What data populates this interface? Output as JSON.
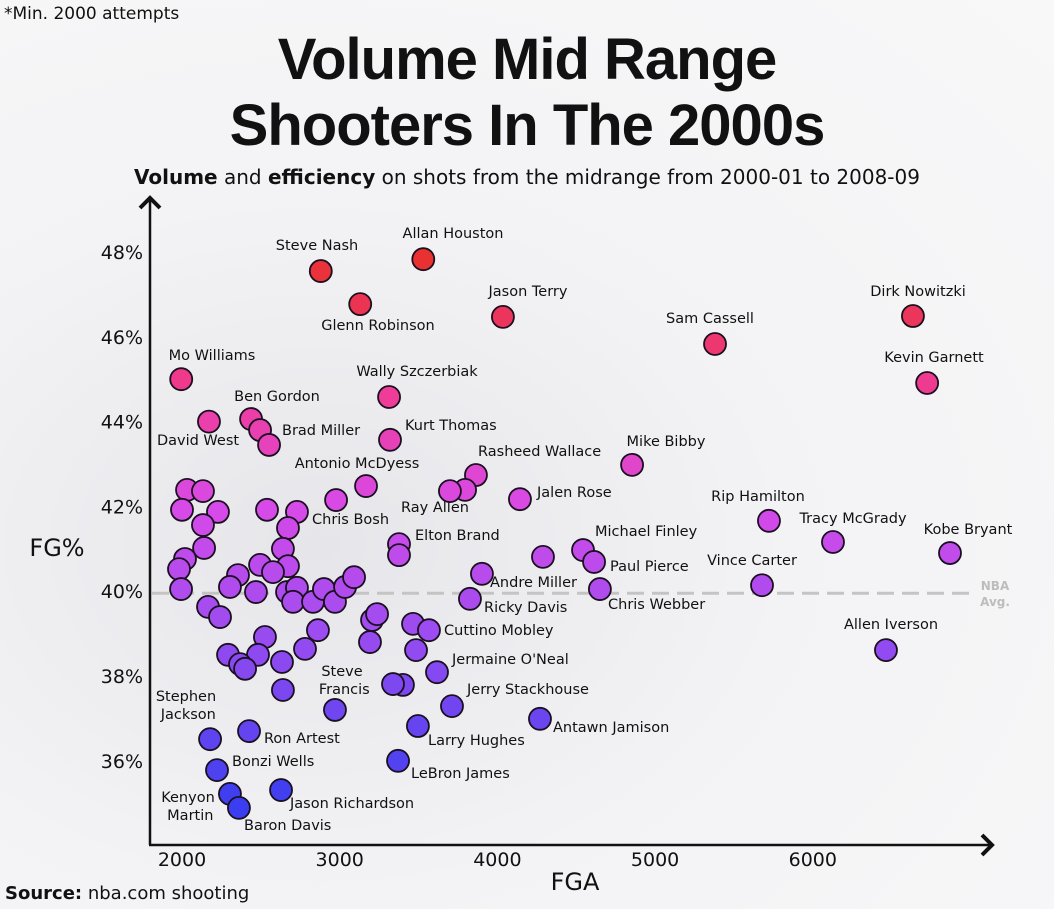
{
  "note": "*Min. 2000 attempts",
  "title_line1": "Volume Mid Range",
  "title_line2": "Shooters In The 2000s",
  "subtitle": {
    "bold1": "Volume",
    "text1": " and ",
    "bold2": "efficiency",
    "text2": " on shots from the midrange from 2000-01 to 2008-09"
  },
  "source": {
    "label": "Source:",
    "text": " nba.com shooting"
  },
  "chart_data": {
    "type": "scatter",
    "xlabel": "FGA",
    "ylabel": "FG%",
    "xlim": [
      1800,
      7000
    ],
    "ylim": [
      34.5,
      49
    ],
    "x_ticks": [
      {
        "v": 2000,
        "label": "2000"
      },
      {
        "v": 3000,
        "label": "3000"
      },
      {
        "v": 4000,
        "label": "4000"
      },
      {
        "v": 5000,
        "label": "5000"
      },
      {
        "v": 6000,
        "label": "6000"
      }
    ],
    "y_ticks": [
      {
        "v": 48,
        "label": "48%"
      },
      {
        "v": 46,
        "label": "46%"
      },
      {
        "v": 44,
        "label": "44%"
      },
      {
        "v": 42,
        "label": "42%"
      },
      {
        "v": 40,
        "label": "40%"
      },
      {
        "v": 38,
        "label": "38%"
      },
      {
        "v": 36,
        "label": "36%"
      }
    ],
    "grid": false,
    "reference_line": {
      "y": 40,
      "label_line1": "NBA",
      "label_line2": "Avg.",
      "color": "#c4c4c4"
    },
    "color_scale": {
      "high": "#e8302a",
      "mid_high": "#f03c9c",
      "mid": "#d84ae8",
      "mid_low": "#9a4cf0",
      "low": "#3a3ef0"
    },
    "points": [
      {
        "x": 2880,
        "y": 47.55,
        "label": "Steve Nash"
      },
      {
        "x": 3530,
        "y": 47.83,
        "label": "Allan Houston"
      },
      {
        "x": 3130,
        "y": 46.77,
        "label": "Glenn Robinson"
      },
      {
        "x": 4035,
        "y": 46.47,
        "label": "Jason Terry"
      },
      {
        "x": 5380,
        "y": 45.83,
        "label": "Sam Cassell"
      },
      {
        "x": 6635,
        "y": 46.49,
        "label": "Dirk Nowitzki"
      },
      {
        "x": 6725,
        "y": 44.91,
        "label": "Kevin Garnett"
      },
      {
        "x": 1995,
        "y": 45.0,
        "label": "Mo Williams"
      },
      {
        "x": 3313,
        "y": 44.58,
        "label": "Wally Szczerbiak"
      },
      {
        "x": 2438,
        "y": 44.06,
        "label": "Ben Gordon"
      },
      {
        "x": 2171,
        "y": 44.0,
        "label": "David West"
      },
      {
        "x": 2495,
        "y": 43.8,
        "label": ""
      },
      {
        "x": 2552,
        "y": 43.45,
        "label": "Brad Miller"
      },
      {
        "x": 3319,
        "y": 43.57,
        "label": "Kurt Thomas"
      },
      {
        "x": 4854,
        "y": 42.98,
        "label": "Mike Bibby"
      },
      {
        "x": 3167,
        "y": 42.48,
        "label": "Antonio McDyess"
      },
      {
        "x": 3864,
        "y": 42.74,
        "label": "Rasheed Wallace"
      },
      {
        "x": 3795,
        "y": 42.39,
        "label": ""
      },
      {
        "x": 3699,
        "y": 42.36,
        "label": "Ray Allen"
      },
      {
        "x": 4143,
        "y": 42.17,
        "label": "Jalen Rose"
      },
      {
        "x": 5722,
        "y": 41.66,
        "label": "Rip Hamilton"
      },
      {
        "x": 6128,
        "y": 41.16,
        "label": "Tracy McGrady"
      },
      {
        "x": 6870,
        "y": 40.9,
        "label": "Kobe Bryant"
      },
      {
        "x": 2977,
        "y": 42.15,
        "label": ""
      },
      {
        "x": 2729,
        "y": 41.87,
        "label": "Chris Bosh"
      },
      {
        "x": 3376,
        "y": 41.11,
        "label": "Elton Brand"
      },
      {
        "x": 3376,
        "y": 40.85,
        "label": ""
      },
      {
        "x": 4543,
        "y": 40.97,
        "label": "Michael Finley"
      },
      {
        "x": 4613,
        "y": 40.69,
        "label": "Paul Pierce"
      },
      {
        "x": 5678,
        "y": 40.14,
        "label": "Vince Carter"
      },
      {
        "x": 4650,
        "y": 40.05,
        "label": "Chris Webber"
      },
      {
        "x": 4289,
        "y": 40.81,
        "label": ""
      },
      {
        "x": 3902,
        "y": 40.41,
        "label": "Andre Miller"
      },
      {
        "x": 3826,
        "y": 39.82,
        "label": "Ricky Davis"
      },
      {
        "x": 6464,
        "y": 38.61,
        "label": "Allen Iverson"
      },
      {
        "x": 3465,
        "y": 39.23,
        "label": ""
      },
      {
        "x": 3566,
        "y": 39.08,
        "label": "Cuttino Mobley"
      },
      {
        "x": 3484,
        "y": 38.61,
        "label": ""
      },
      {
        "x": 3617,
        "y": 38.09,
        "label": "Jermaine O'Neal"
      },
      {
        "x": 3401,
        "y": 37.79,
        "label": ""
      },
      {
        "x": 3712,
        "y": 37.29,
        "label": "Jerry Stackhouse"
      },
      {
        "x": 4270,
        "y": 36.99,
        "label": "Antawn Jamison"
      },
      {
        "x": 3496,
        "y": 36.82,
        "label": "Larry Hughes"
      },
      {
        "x": 3370,
        "y": 36.0,
        "label": "LeBron James"
      },
      {
        "x": 2970,
        "y": 37.2,
        "label": "Steve Francis"
      },
      {
        "x": 2178,
        "y": 36.51,
        "label": "Stephen Jackson"
      },
      {
        "x": 2425,
        "y": 36.7,
        "label": "Ron Artest"
      },
      {
        "x": 2222,
        "y": 35.78,
        "label": "Bonzi Wells"
      },
      {
        "x": 2628,
        "y": 35.31,
        "label": "Jason Richardson"
      },
      {
        "x": 2304,
        "y": 35.22,
        "label": "Kenyon Martin"
      },
      {
        "x": 2361,
        "y": 34.89,
        "label": "Baron Davis"
      },
      {
        "x": 2032,
        "y": 42.39,
        "label": ""
      },
      {
        "x": 2133,
        "y": 42.36,
        "label": ""
      },
      {
        "x": 2000,
        "y": 41.92,
        "label": ""
      },
      {
        "x": 2228,
        "y": 41.87,
        "label": ""
      },
      {
        "x": 2133,
        "y": 41.56,
        "label": ""
      },
      {
        "x": 2539,
        "y": 41.92,
        "label": ""
      },
      {
        "x": 2672,
        "y": 41.49,
        "label": ""
      },
      {
        "x": 2140,
        "y": 41.02,
        "label": ""
      },
      {
        "x": 2019,
        "y": 40.76,
        "label": ""
      },
      {
        "x": 1981,
        "y": 40.52,
        "label": ""
      },
      {
        "x": 1994,
        "y": 40.05,
        "label": ""
      },
      {
        "x": 2640,
        "y": 41.0,
        "label": ""
      },
      {
        "x": 2672,
        "y": 40.59,
        "label": ""
      },
      {
        "x": 2355,
        "y": 40.38,
        "label": ""
      },
      {
        "x": 2304,
        "y": 40.1,
        "label": ""
      },
      {
        "x": 2495,
        "y": 40.62,
        "label": ""
      },
      {
        "x": 2577,
        "y": 40.45,
        "label": ""
      },
      {
        "x": 2469,
        "y": 39.98,
        "label": ""
      },
      {
        "x": 2666,
        "y": 39.98,
        "label": ""
      },
      {
        "x": 2729,
        "y": 40.08,
        "label": ""
      },
      {
        "x": 2704,
        "y": 39.75,
        "label": ""
      },
      {
        "x": 2831,
        "y": 39.75,
        "label": ""
      },
      {
        "x": 2900,
        "y": 40.05,
        "label": ""
      },
      {
        "x": 2970,
        "y": 39.75,
        "label": ""
      },
      {
        "x": 3034,
        "y": 40.1,
        "label": ""
      },
      {
        "x": 3091,
        "y": 40.33,
        "label": ""
      },
      {
        "x": 2165,
        "y": 39.63,
        "label": ""
      },
      {
        "x": 2241,
        "y": 39.39,
        "label": ""
      },
      {
        "x": 3205,
        "y": 39.32,
        "label": ""
      },
      {
        "x": 3237,
        "y": 39.46,
        "label": ""
      },
      {
        "x": 3192,
        "y": 38.8,
        "label": ""
      },
      {
        "x": 2862,
        "y": 39.08,
        "label": ""
      },
      {
        "x": 2780,
        "y": 38.64,
        "label": ""
      },
      {
        "x": 2526,
        "y": 38.92,
        "label": ""
      },
      {
        "x": 2482,
        "y": 38.5,
        "label": ""
      },
      {
        "x": 2292,
        "y": 38.5,
        "label": ""
      },
      {
        "x": 2368,
        "y": 38.28,
        "label": ""
      },
      {
        "x": 2400,
        "y": 38.17,
        "label": ""
      },
      {
        "x": 2634,
        "y": 38.33,
        "label": ""
      },
      {
        "x": 2640,
        "y": 37.67,
        "label": ""
      },
      {
        "x": 3338,
        "y": 37.81,
        "label": ""
      }
    ]
  }
}
